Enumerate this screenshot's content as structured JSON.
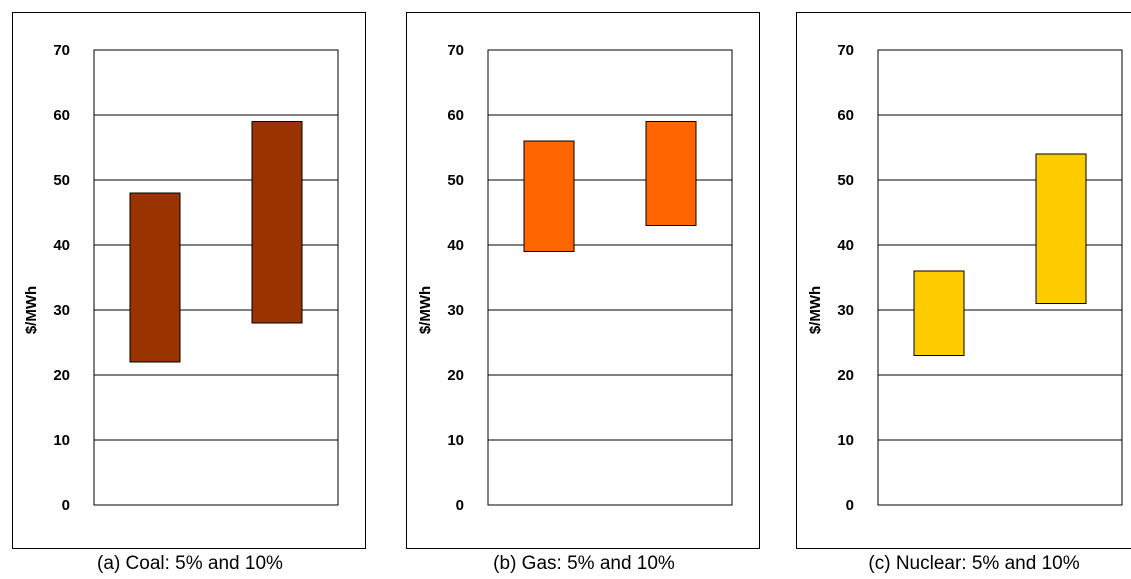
{
  "chart_data": [
    {
      "type": "bar",
      "subtype": "floating-range",
      "title": "",
      "caption": "(a) Coal: 5% and 10%",
      "ylabel": "$/MWh",
      "xlabel": "",
      "ylim": [
        0,
        70
      ],
      "yticks": [
        0,
        10,
        20,
        30,
        40,
        50,
        60,
        70
      ],
      "grid": true,
      "categories": [
        "5%",
        "10%"
      ],
      "ranges": [
        {
          "low": 22,
          "high": 48
        },
        {
          "low": 28,
          "high": 59
        }
      ],
      "color": "#993300"
    },
    {
      "type": "bar",
      "subtype": "floating-range",
      "title": "",
      "caption": "(b) Gas: 5% and 10%",
      "ylabel": "$/MWh",
      "xlabel": "",
      "ylim": [
        0,
        70
      ],
      "yticks": [
        0,
        10,
        20,
        30,
        40,
        50,
        60,
        70
      ],
      "grid": true,
      "categories": [
        "5%",
        "10%"
      ],
      "ranges": [
        {
          "low": 39,
          "high": 56
        },
        {
          "low": 43,
          "high": 59
        }
      ],
      "color": "#FF6600"
    },
    {
      "type": "bar",
      "subtype": "floating-range",
      "title": "",
      "caption": "(c) Nuclear: 5% and 10%",
      "ylabel": "$/MWh",
      "xlabel": "",
      "ylim": [
        0,
        70
      ],
      "yticks": [
        0,
        10,
        20,
        30,
        40,
        50,
        60,
        70
      ],
      "grid": true,
      "categories": [
        "5%",
        "10%"
      ],
      "ranges": [
        {
          "low": 23,
          "high": 36
        },
        {
          "low": 31,
          "high": 54
        }
      ],
      "color": "#FFCC00"
    }
  ]
}
